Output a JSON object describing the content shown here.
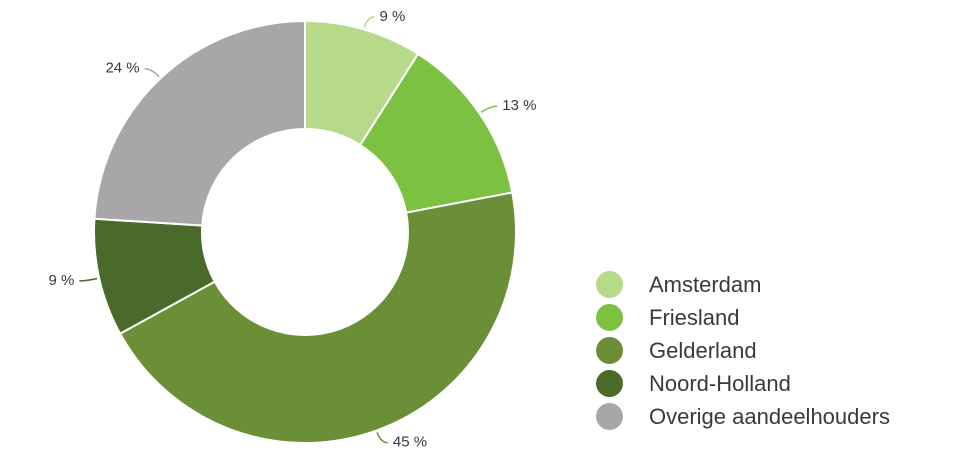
{
  "chart_data": {
    "type": "pie",
    "title": "",
    "categories": [
      "Amsterdam",
      "Friesland",
      "Gelderland",
      "Noord-Holland",
      "Overige aandeelhouders"
    ],
    "values": [
      9,
      13,
      45,
      9,
      24
    ],
    "value_labels": [
      "9 %",
      "13 %",
      "45 %",
      "9 %",
      "24 %"
    ],
    "unit": "%",
    "colors": [
      "#b6d98a",
      "#7dc142",
      "#6a8f37",
      "#4a6a2b",
      "#a8a6a8"
    ],
    "donut": true,
    "start_angle": "12 o'clock",
    "direction": "clockwise",
    "legend_position": "bottom-right"
  }
}
